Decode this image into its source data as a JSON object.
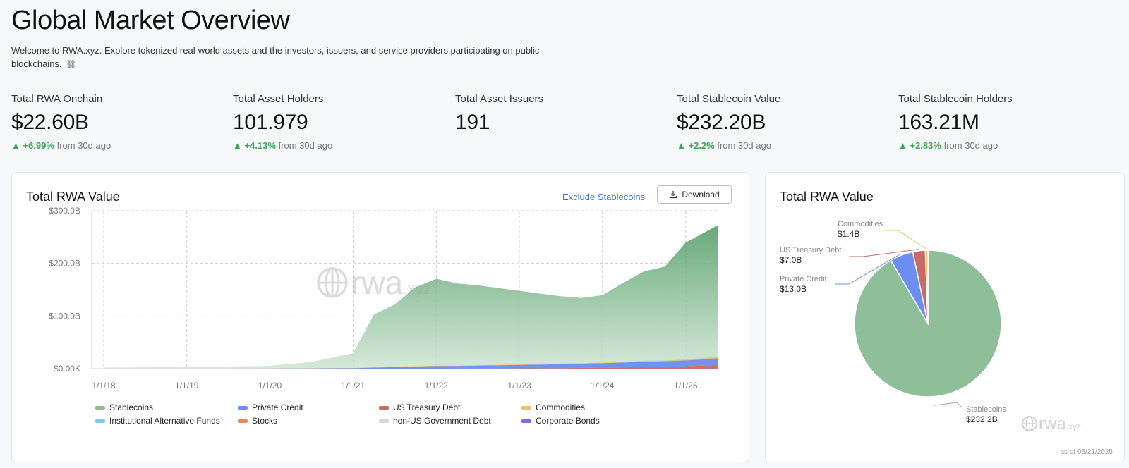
{
  "header": {
    "title": "Global Market Overview",
    "subtitle": "Welcome to RWA.xyz. Explore tokenized real-world assets and the investors, issuers, and service providers participating on public blockchains.",
    "subtitle_icon": "link-icon"
  },
  "stats": [
    {
      "label": "Total RWA Onchain",
      "value": "$22.60B",
      "change": "+6.99%",
      "change_suffix": "from 30d ago"
    },
    {
      "label": "Total Asset Holders",
      "value": "101.979",
      "change": "+4.13%",
      "change_suffix": "from 30d ago"
    },
    {
      "label": "Total Asset Issuers",
      "value": "191",
      "change": "",
      "change_suffix": ""
    },
    {
      "label": "Total Stablecoin Value",
      "value": "$232.20B",
      "change": "+2.2%",
      "change_suffix": "from 30d ago"
    },
    {
      "label": "Total Stablecoin Holders",
      "value": "163.21M",
      "change": "+2.83%",
      "change_suffix": "from 30d ago"
    }
  ],
  "main_chart": {
    "title": "Total RWA Value",
    "exclude_label": "Exclude Stablecoins",
    "download_label": "Download",
    "watermark": "rwa.xyz"
  },
  "pie_chart_card": {
    "title": "Total RWA Value",
    "watermark": "rwa.xyz",
    "as_of": "as of 05/21/2025"
  },
  "colors": {
    "up": "#3aa757",
    "link": "#3b6fd8",
    "stablecoins": "#8fbf98",
    "private_credit": "#6b8ef0",
    "us_treasury": "#c96a6a",
    "commodities": "#e8c36a",
    "institutional_alt_funds": "#79cde6",
    "stocks": "#ea8a5a",
    "non_us_gov_debt": "#d6dad6",
    "corporate_bonds": "#8c63e0"
  },
  "chart_data": [
    {
      "type": "area",
      "title": "Total RWA Value",
      "x": [
        "1/1/18",
        "7/1/18",
        "1/1/19",
        "7/1/19",
        "1/1/20",
        "7/1/20",
        "1/1/21",
        "4/1/21",
        "7/1/21",
        "10/1/21",
        "1/1/22",
        "4/1/22",
        "7/1/22",
        "10/1/22",
        "1/1/23",
        "4/1/23",
        "7/1/23",
        "10/1/23",
        "1/1/24",
        "4/1/24",
        "7/1/24",
        "10/1/24",
        "1/1/25",
        "4/1/25",
        "5/21/25"
      ],
      "x_tick_labels": [
        "1/1/18",
        "1/1/19",
        "1/1/20",
        "1/1/21",
        "1/1/22",
        "1/1/23",
        "1/1/24",
        "1/1/25"
      ],
      "y_tick_labels": [
        "$0.00K",
        "$100.0B",
        "$200.0B",
        "$300.0B"
      ],
      "ylim": [
        0,
        300
      ],
      "grid": true,
      "stacked": true,
      "series": [
        {
          "name": "Stablecoins",
          "color": "#8fbf98",
          "values": [
            2,
            2.5,
            3,
            4,
            5,
            12,
            28,
            100,
            118,
            150,
            165,
            156,
            152,
            146,
            140,
            134,
            128,
            124,
            128,
            150,
            170,
            178,
            222,
            240,
            250
          ]
        },
        {
          "name": "Private Credit",
          "color": "#6b8ef0",
          "values": [
            0,
            0,
            0,
            0,
            0.2,
            0.5,
            1,
            2,
            3,
            4,
            5,
            5,
            5.5,
            6,
            6.5,
            7,
            7.5,
            8,
            8.5,
            9,
            10,
            10.5,
            11,
            12,
            13
          ]
        },
        {
          "name": "US Treasury Debt",
          "color": "#c96a6a",
          "values": [
            0,
            0,
            0,
            0,
            0,
            0,
            0,
            0,
            0,
            0,
            0,
            0.1,
            0.2,
            0.4,
            0.6,
            0.8,
            1,
            1.5,
            2,
            2.5,
            3,
            3.5,
            4.5,
            6,
            7
          ]
        },
        {
          "name": "Commodities",
          "color": "#e8c36a",
          "values": [
            0,
            0,
            0,
            0,
            0.1,
            0.2,
            0.3,
            0.5,
            0.6,
            0.7,
            0.8,
            0.8,
            0.8,
            0.8,
            0.9,
            0.9,
            1,
            1,
            1,
            1.1,
            1.2,
            1.2,
            1.3,
            1.4,
            1.4
          ]
        },
        {
          "name": "Institutional Alternative Funds",
          "color": "#79cde6",
          "values": [
            0,
            0,
            0,
            0,
            0,
            0,
            0,
            0,
            0,
            0,
            0,
            0,
            0,
            0,
            0,
            0,
            0,
            0,
            0,
            0.1,
            0.2,
            0.3,
            0.4,
            0.5,
            0.6
          ]
        },
        {
          "name": "Stocks",
          "color": "#ea8a5a",
          "values": [
            0,
            0,
            0,
            0,
            0,
            0,
            0,
            0,
            0,
            0,
            0,
            0,
            0,
            0,
            0,
            0,
            0,
            0,
            0,
            0,
            0,
            0,
            0,
            0.1,
            0.1
          ]
        },
        {
          "name": "non-US Government Debt",
          "color": "#d6dad6",
          "values": [
            0,
            0,
            0,
            0,
            0,
            0,
            0,
            0,
            0,
            0,
            0,
            0,
            0,
            0,
            0,
            0,
            0,
            0,
            0,
            0.1,
            0.2,
            0.2,
            0.3,
            0.3,
            0.3
          ]
        },
        {
          "name": "Corporate Bonds",
          "color": "#8c63e0",
          "values": [
            0,
            0,
            0,
            0,
            0,
            0,
            0,
            0,
            0,
            0,
            0,
            0,
            0,
            0,
            0,
            0,
            0,
            0,
            0,
            0,
            0.1,
            0.1,
            0.1,
            0.2,
            0.2
          ]
        }
      ]
    },
    {
      "type": "pie",
      "title": "Total RWA Value",
      "slices": [
        {
          "label": "Stablecoins",
          "value_label": "$232.2B",
          "value": 232.2,
          "color": "#8fbf98"
        },
        {
          "label": "Private Credit",
          "value_label": "$13.0B",
          "value": 13.0,
          "color": "#6b8ef0"
        },
        {
          "label": "US Treasury Debt",
          "value_label": "$7.0B",
          "value": 7.0,
          "color": "#c96a6a"
        },
        {
          "label": "Commodities",
          "value_label": "$1.4B",
          "value": 1.4,
          "color": "#e8c36a"
        }
      ]
    }
  ]
}
